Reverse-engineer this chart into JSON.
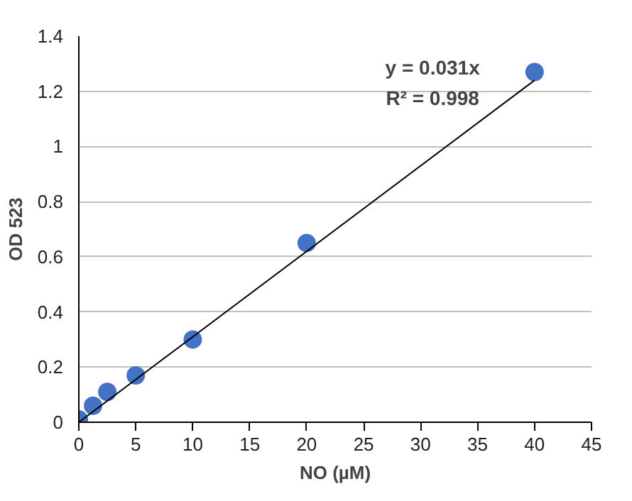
{
  "chart_data": {
    "type": "scatter",
    "xlabel": "NO (µM)",
    "ylabel": "OD 523",
    "series": [
      {
        "color": "#4472c4",
        "marker": "circle",
        "x": [
          0,
          1.25,
          2.5,
          5,
          10,
          20,
          40
        ],
        "values": [
          0.01,
          0.06,
          0.11,
          0.17,
          0.3,
          0.65,
          1.27
        ]
      },
      {
        "type": "line",
        "color": "#000000",
        "marker": "none",
        "x": [
          0,
          40
        ],
        "values": [
          0,
          1.24
        ]
      }
    ],
    "annotations": [
      "y = 0.031x",
      "R² = 0.998"
    ],
    "xlim": [
      0,
      45
    ],
    "xticks": [
      0,
      5,
      10,
      15,
      20,
      25,
      30,
      35,
      40,
      45
    ],
    "ylim": [
      0,
      1.4
    ],
    "yticks": [
      0,
      0.2,
      0.4,
      0.6,
      0.8,
      1,
      1.2,
      1.4
    ],
    "grid": "y",
    "line_style": "solid"
  }
}
